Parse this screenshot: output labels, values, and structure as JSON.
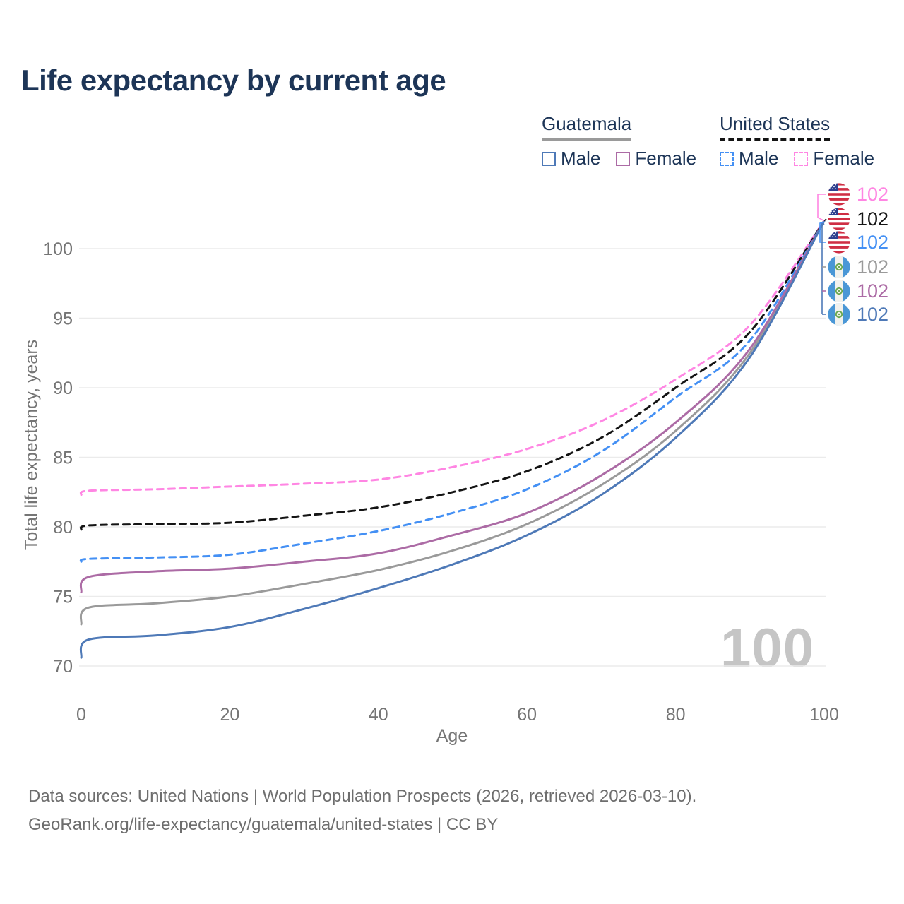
{
  "header": {
    "title": "Life expectancy by current age"
  },
  "legend": {
    "guatemala": {
      "label": "Guatemala",
      "male_label": "Male",
      "female_label": "Female"
    },
    "united_states": {
      "label": "United States",
      "male_label": "Male",
      "female_label": "Female"
    }
  },
  "chart_data": {
    "type": "line",
    "title": "Life expectancy by current age",
    "xlabel": "Age",
    "ylabel": "Total life expectancy, years",
    "x": [
      0,
      1,
      10,
      20,
      30,
      40,
      50,
      60,
      70,
      80,
      90,
      100
    ],
    "x_ticks": [
      0,
      20,
      40,
      60,
      80,
      100
    ],
    "y_ticks": [
      70,
      75,
      80,
      85,
      90,
      95,
      100
    ],
    "xlim": [
      0,
      100
    ],
    "ylim": [
      70,
      103
    ],
    "grid": "horizontal",
    "legend_position": "top-right",
    "series": [
      {
        "name": "United States Female",
        "country": "us",
        "style": "dashed",
        "color": "#ff86e3",
        "values": [
          82.3,
          82.6,
          82.7,
          82.9,
          83.1,
          83.4,
          84.3,
          85.6,
          87.6,
          90.6,
          94.5,
          102
        ],
        "end_label": "102",
        "flag": "us-flag-icon"
      },
      {
        "name": "United States Total",
        "country": "us",
        "style": "dashed",
        "color": "#141414",
        "values": [
          79.8,
          80.1,
          80.2,
          80.3,
          80.8,
          81.4,
          82.5,
          84.0,
          86.4,
          90.0,
          94.0,
          102
        ],
        "end_label": "102",
        "flag": "us-flag-icon"
      },
      {
        "name": "United States Male",
        "country": "us",
        "style": "dashed",
        "color": "#4490f4",
        "values": [
          77.5,
          77.7,
          77.8,
          78.0,
          78.8,
          79.7,
          81.0,
          82.7,
          85.4,
          89.3,
          93.4,
          102
        ],
        "end_label": "102",
        "flag": "us-flag-icon"
      },
      {
        "name": "Guatemala Total",
        "country": "gt",
        "style": "solid",
        "color": "#9a9a9a",
        "values": [
          73.0,
          74.2,
          74.5,
          75.0,
          75.9,
          76.9,
          78.3,
          80.2,
          83.0,
          86.9,
          92.5,
          102
        ],
        "end_label": "102",
        "flag": "guatemala-flag-icon"
      },
      {
        "name": "Guatemala Female",
        "country": "gt",
        "style": "solid",
        "color": "#ac6ba5",
        "values": [
          75.3,
          76.4,
          76.8,
          77.0,
          77.5,
          78.1,
          79.4,
          81.0,
          83.7,
          87.5,
          92.8,
          102
        ],
        "end_label": "102",
        "flag": "guatemala-flag-icon"
      },
      {
        "name": "Guatemala Male",
        "country": "gt",
        "style": "solid",
        "color": "#4e79b7",
        "values": [
          70.6,
          71.9,
          72.2,
          72.8,
          74.1,
          75.6,
          77.3,
          79.4,
          82.3,
          86.4,
          92.2,
          102
        ],
        "end_label": "102",
        "flag": "guatemala-flag-icon"
      }
    ]
  },
  "watermark": "100",
  "footer": {
    "line1": "Data sources: United Nations | World Population Prospects (2026, retrieved 2026-03-10).",
    "line2": "GeoRank.org/life-expectancy/guatemala/united-states | CC BY"
  },
  "colors": {
    "title_text": "#1d3557",
    "axis_text": "#757575",
    "gridline": "#ebebeb",
    "watermark": "#c5c5c5",
    "guatemala_underline": "#9a9a9a",
    "us_underline": "#141414"
  }
}
